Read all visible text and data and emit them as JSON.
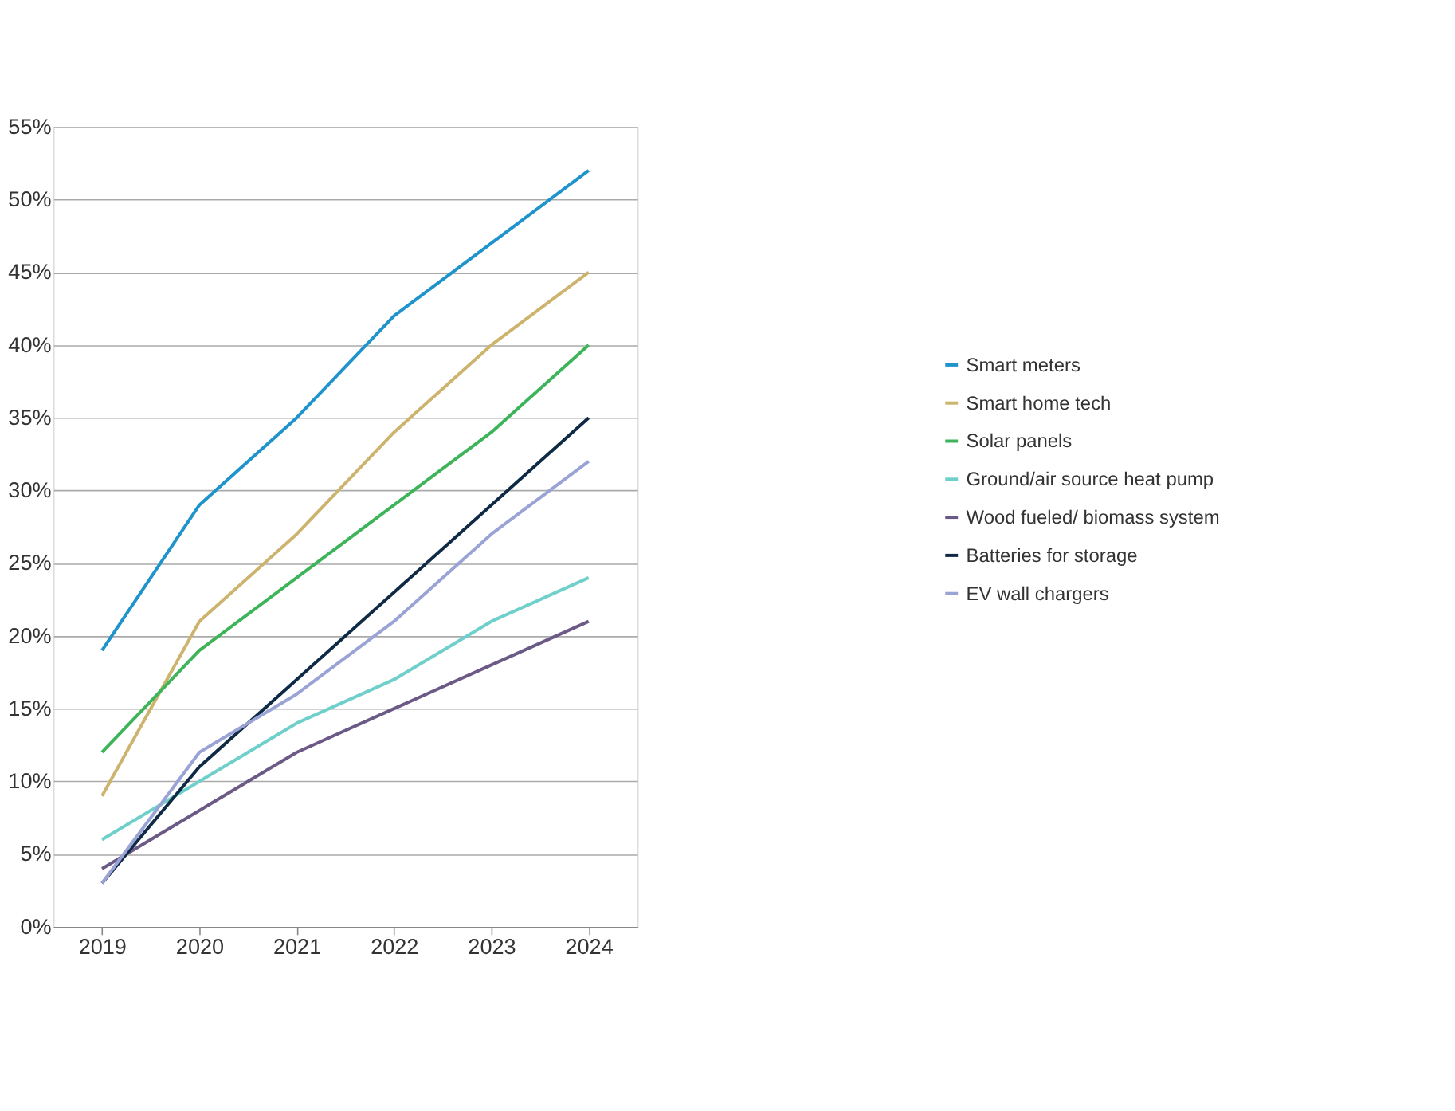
{
  "chart_data": {
    "type": "line",
    "categories": [
      "2019",
      "2020",
      "2021",
      "2022",
      "2023",
      "2024"
    ],
    "series": [
      {
        "name": "Smart meters",
        "color": "#1f93cc",
        "values": [
          19,
          29,
          35,
          42,
          47,
          52
        ]
      },
      {
        "name": "Smart home tech",
        "color": "#cdb46e",
        "values": [
          9,
          21,
          27,
          34,
          40,
          45
        ]
      },
      {
        "name": "Solar panels",
        "color": "#3db45a",
        "values": [
          12,
          19,
          24,
          29,
          34,
          40
        ]
      },
      {
        "name": "Ground/air source heat pump",
        "color": "#6fcfca",
        "values": [
          6,
          10,
          14,
          17,
          21,
          24
        ]
      },
      {
        "name": "Wood fueled/ biomass system",
        "color": "#6b5a85",
        "values": [
          4,
          8,
          12,
          15,
          18,
          21
        ]
      },
      {
        "name": "Batteries for storage",
        "color": "#0f2a45",
        "values": [
          3,
          11,
          17,
          23,
          29,
          35
        ]
      },
      {
        "name": "EV wall chargers",
        "color": "#9aa3d6",
        "values": [
          3,
          12,
          16,
          21,
          27,
          32
        ]
      }
    ],
    "ylim": [
      0,
      55
    ],
    "yticks": [
      {
        "value": 0,
        "label": "0%"
      },
      {
        "value": 5,
        "label": "5%"
      },
      {
        "value": 10,
        "label": "10%"
      },
      {
        "value": 15,
        "label": "15%"
      },
      {
        "value": 20,
        "label": "20%"
      },
      {
        "value": 25,
        "label": "25%"
      },
      {
        "value": 30,
        "label": "30%"
      },
      {
        "value": 35,
        "label": "35%"
      },
      {
        "value": 40,
        "label": "40%"
      },
      {
        "value": 45,
        "label": "45%"
      },
      {
        "value": 50,
        "label": "50%"
      },
      {
        "value": 55,
        "label": "55%"
      }
    ],
    "grid": "y",
    "legend": "right",
    "marker": "none",
    "line_style": "solid"
  }
}
